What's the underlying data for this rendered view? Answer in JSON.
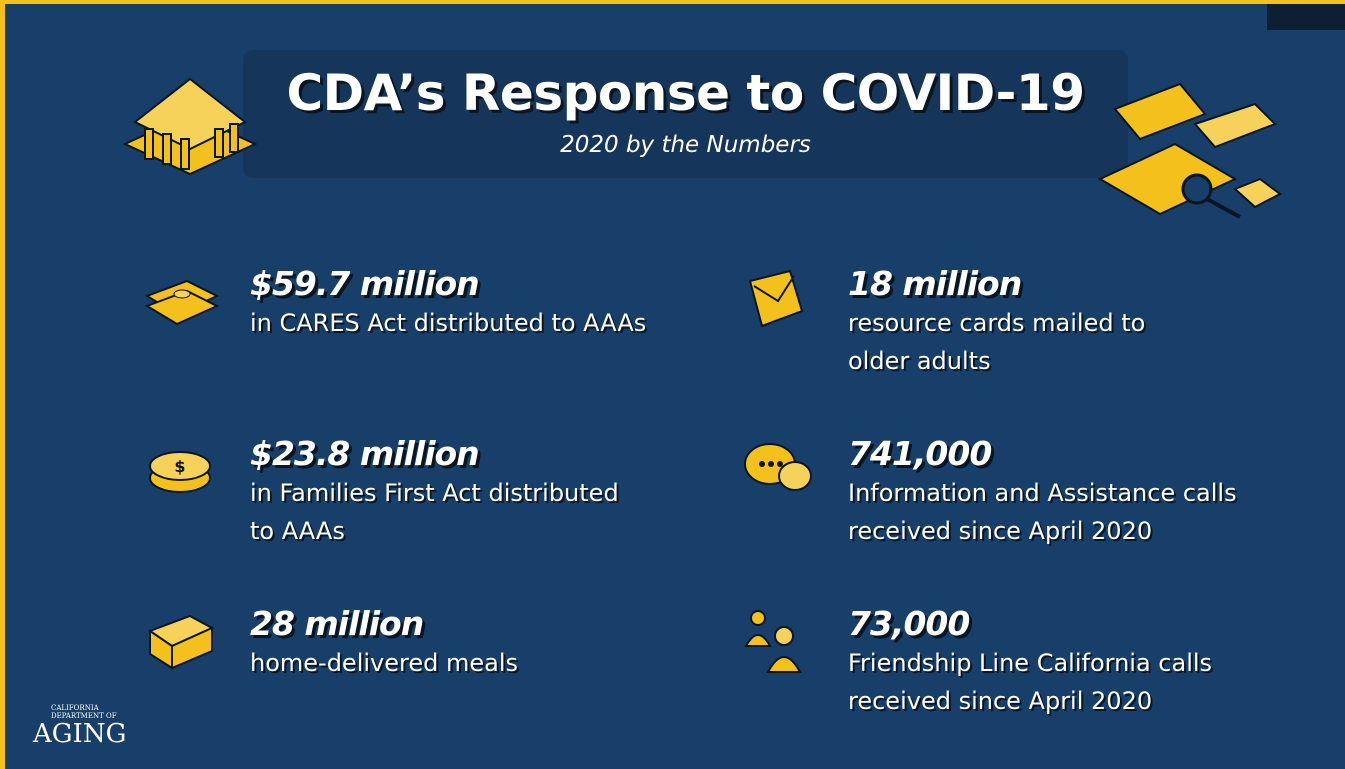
{
  "header": {
    "title": "CDA’s Response to COVID-19",
    "subtitle": "2020 by the Numbers"
  },
  "stats": [
    {
      "value": "$59.7 million",
      "lines": [
        "in CARES Act distributed to AAAs"
      ]
    },
    {
      "value": "18 million",
      "lines": [
        "resource cards mailed to",
        "older adults"
      ]
    },
    {
      "value": "$23.8 million",
      "lines": [
        "in Families First Act distributed",
        "to AAAs"
      ]
    },
    {
      "value": "741,000",
      "lines": [
        "Information and Assistance calls",
        "received since April 2020"
      ]
    },
    {
      "value": "28 million",
      "lines": [
        "home-delivered meals"
      ]
    },
    {
      "value": "73,000",
      "lines": [
        "Friendship Line California calls",
        "received since April 2020"
      ]
    }
  ],
  "logo": {
    "line1": "CALIFORNIA",
    "line2": "DEPARTMENT OF",
    "name": "AGING"
  }
}
